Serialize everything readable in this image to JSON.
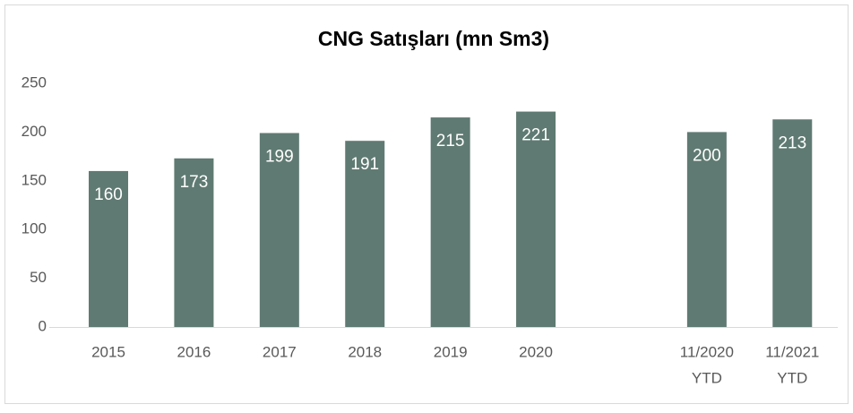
{
  "chart_data": {
    "type": "bar",
    "title": "CNG Satışları (mn Sm3)",
    "categories": [
      "2015",
      "2016",
      "2017",
      "2018",
      "2019",
      "2020",
      null,
      [
        "11/2020",
        "YTD"
      ],
      [
        "11/2021",
        "YTD"
      ]
    ],
    "values": [
      160,
      173,
      199,
      191,
      215,
      221,
      null,
      200,
      213
    ],
    "color": "#5f7a72",
    "ylim": [
      0,
      250
    ],
    "yticks": [
      0,
      50,
      100,
      150,
      200,
      250
    ],
    "grid": false
  }
}
